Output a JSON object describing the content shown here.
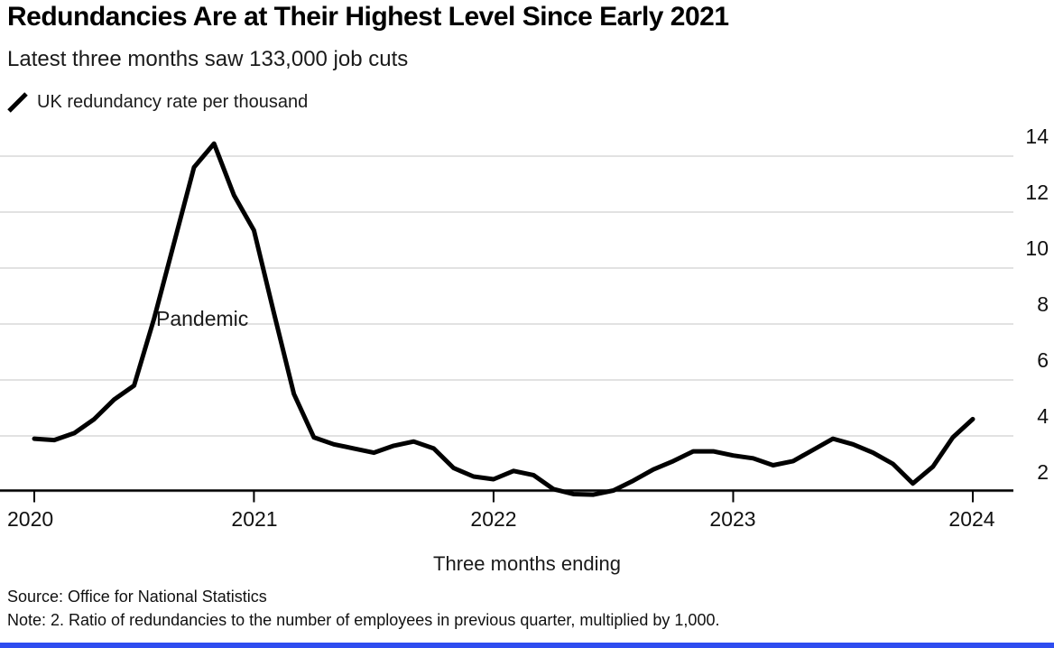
{
  "header": {
    "title": "Redundancies Are at Their Highest Level Since Early 2021",
    "subtitle": "Latest three months saw 133,000 job cuts"
  },
  "legend": {
    "icon": "line-stroke-icon",
    "label": "UK redundancy rate per thousand"
  },
  "annotation": {
    "text": "Pandemic"
  },
  "x_axis": {
    "title": "Three months ending",
    "tick_labels": [
      "2020",
      "2021",
      "2022",
      "2023",
      "2024"
    ]
  },
  "y_axis": {
    "tick_labels": [
      "2",
      "4",
      "6",
      "8",
      "10",
      "12",
      "14"
    ]
  },
  "footer": {
    "source": "Source: Office for National Statistics",
    "note": "Note: 2. Ratio of redundancies to the number of employees in previous quarter, multiplied by 1,000."
  },
  "colors": {
    "line": "#000000",
    "gridline": "#d8d8d8",
    "axis": "#000000",
    "accent_bar": "#2e4df0",
    "text": "#111111"
  },
  "chart_data": {
    "type": "line",
    "title": "Redundancies Are at Their Highest Level Since Early 2021",
    "subtitle": "Latest three months saw 133,000 job cuts",
    "xlabel": "Three months ending",
    "ylabel": "UK redundancy rate per thousand",
    "legend_position": "top-left",
    "grid": "horizontal",
    "ylim": [
      1.75,
      14.8
    ],
    "gridline_values": [
      2,
      4,
      6,
      8,
      10,
      12,
      14
    ],
    "x": [
      "2020-02",
      "2020-03",
      "2020-04",
      "2020-05",
      "2020-06",
      "2020-07",
      "2020-08",
      "2020-09",
      "2020-10",
      "2020-11",
      "2020-12",
      "2021-01",
      "2021-02",
      "2021-03",
      "2021-04",
      "2021-05",
      "2021-06",
      "2021-07",
      "2021-08",
      "2021-09",
      "2021-10",
      "2021-11",
      "2021-12",
      "2022-01",
      "2022-02",
      "2022-03",
      "2022-04",
      "2022-05",
      "2022-06",
      "2022-07",
      "2022-08",
      "2022-09",
      "2022-10",
      "2022-11",
      "2022-12",
      "2023-01",
      "2023-02",
      "2023-03",
      "2023-04",
      "2023-05",
      "2023-06",
      "2023-07",
      "2023-08",
      "2023-09",
      "2023-10",
      "2023-11",
      "2023-12",
      "2024-01"
    ],
    "series": [
      {
        "name": "UK redundancy rate per thousand",
        "values": [
          3.9,
          3.85,
          4.1,
          4.6,
          5.3,
          5.8,
          8.2,
          10.9,
          13.6,
          14.45,
          12.6,
          11.35,
          8.4,
          5.5,
          3.95,
          3.7,
          3.55,
          3.4,
          3.65,
          3.8,
          3.55,
          2.85,
          2.55,
          2.45,
          2.75,
          2.6,
          2.1,
          1.92,
          1.9,
          2.05,
          2.4,
          2.8,
          3.1,
          3.45,
          3.45,
          3.3,
          3.2,
          2.95,
          3.1,
          3.5,
          3.9,
          3.7,
          3.4,
          3.0,
          2.3,
          2.9,
          3.95,
          4.6
        ]
      }
    ],
    "x_tick_labels": [
      "2020",
      "2021",
      "2022",
      "2023",
      "2024"
    ],
    "x_tick_indices": [
      0,
      11,
      23,
      35,
      47
    ],
    "annotations": [
      {
        "text": "Pandemic",
        "x": "2020-08",
        "y": 7.3
      }
    ]
  }
}
